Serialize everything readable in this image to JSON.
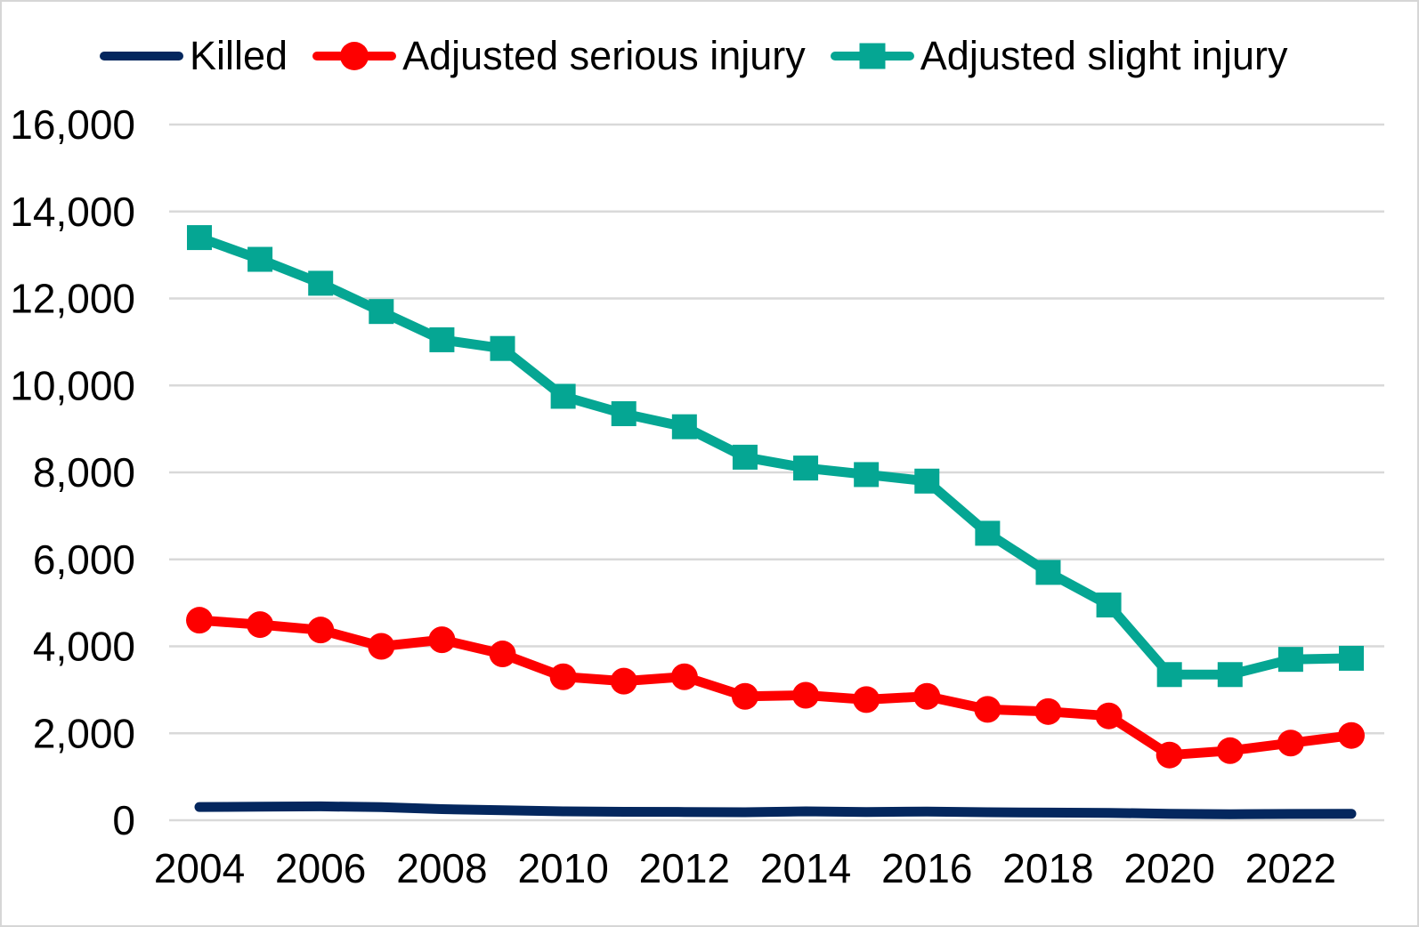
{
  "chart_data": {
    "type": "line",
    "title": "",
    "xlabel": "",
    "ylabel": "",
    "x": [
      2004,
      2005,
      2006,
      2007,
      2008,
      2009,
      2010,
      2011,
      2012,
      2013,
      2014,
      2015,
      2016,
      2017,
      2018,
      2019,
      2020,
      2021,
      2022,
      2023
    ],
    "x_tick_labels": [
      "2004",
      "2006",
      "2008",
      "2010",
      "2012",
      "2014",
      "2016",
      "2018",
      "2020",
      "2022"
    ],
    "y_tick_labels": [
      "0",
      "2,000",
      "4,000",
      "6,000",
      "8,000",
      "10,000",
      "12,000",
      "14,000",
      "16,000"
    ],
    "ytick_step": 2000,
    "ylim": [
      0,
      16000
    ],
    "grid": "horizontal",
    "legend_position": "top",
    "series": [
      {
        "id": "killed",
        "name": "Killed",
        "color": "#04275e",
        "marker": "none",
        "values": [
          305,
          310,
          320,
          300,
          255,
          230,
          205,
          195,
          190,
          185,
          205,
          190,
          200,
          185,
          175,
          170,
          150,
          140,
          145,
          150
        ]
      },
      {
        "id": "adjusted-serious-injury",
        "name": "Adjusted serious injury",
        "color": "#fe0000",
        "marker": "circle",
        "values": [
          4600,
          4500,
          4375,
          4000,
          4150,
          3825,
          3300,
          3200,
          3300,
          2850,
          2875,
          2775,
          2850,
          2550,
          2500,
          2400,
          1500,
          1600,
          1775,
          1950
        ]
      },
      {
        "id": "adjusted-slight-injury",
        "name": "Adjusted slight injury",
        "color": "#05a693",
        "marker": "square",
        "values": [
          13400,
          12900,
          12350,
          11700,
          11050,
          10850,
          9750,
          9350,
          9050,
          8350,
          8100,
          7950,
          7800,
          6600,
          5700,
          4950,
          3350,
          3350,
          3700,
          3725
        ]
      }
    ],
    "colors": {
      "gridline": "#d9d9d9",
      "axis_text": "#000000",
      "background": "#ffffff",
      "frame_border": "#d6d6d6"
    }
  }
}
